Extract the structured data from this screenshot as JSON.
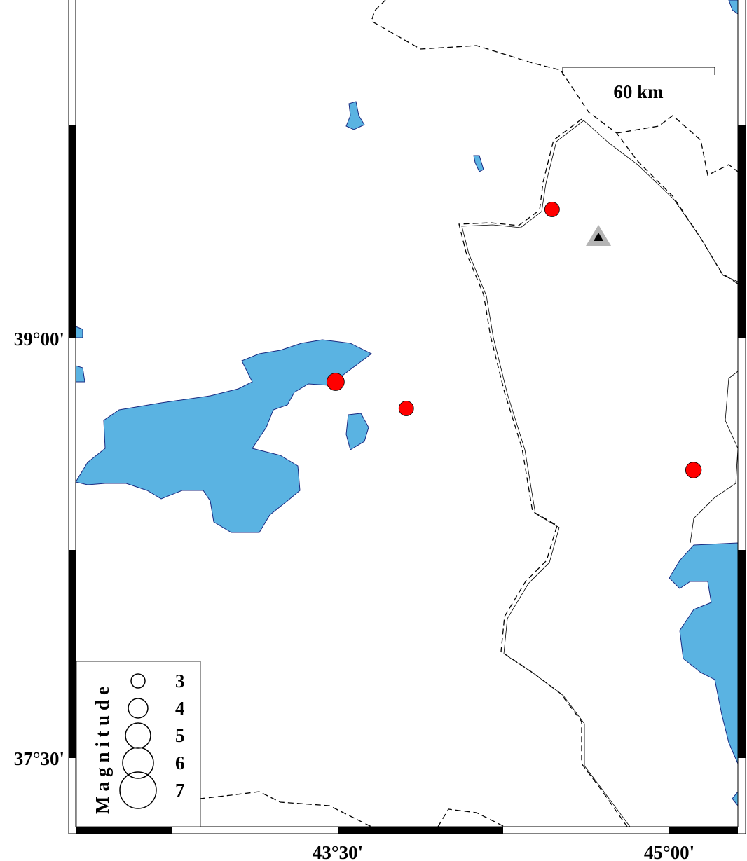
{
  "map": {
    "frame": {
      "lon_range": [
        42.5,
        45.3
      ],
      "lat_range": [
        37.3,
        40.2
      ]
    },
    "lon_labels": [
      {
        "lon": 43.5,
        "text": "43°30'"
      },
      {
        "lon": 45.0,
        "text": "45°00'"
      }
    ],
    "lat_labels": [
      {
        "lat": 39.0,
        "text": "39°00'"
      },
      {
        "lat": 37.5,
        "text": "37°30'"
      }
    ],
    "scale_bar": {
      "label": "60 km"
    },
    "colors": {
      "water": "#5ab3e2",
      "event": "#ff0000",
      "station": "#000000",
      "station_halo": "#b4b4b4"
    },
    "events": [
      {
        "lon": 43.49,
        "lat": 38.845,
        "mag": 4.0
      },
      {
        "lon": 43.81,
        "lat": 38.75,
        "mag": 3.5
      },
      {
        "lon": 44.47,
        "lat": 39.46,
        "mag": 3.5
      },
      {
        "lon": 45.11,
        "lat": 38.53,
        "mag": 3.7
      }
    ],
    "stations": [
      {
        "lon": 44.68,
        "lat": 39.36,
        "icon": "triangle"
      }
    ]
  },
  "legend": {
    "title": "Magnitude",
    "items": [
      {
        "mag": 3,
        "label": "3"
      },
      {
        "mag": 4,
        "label": "4"
      },
      {
        "mag": 5,
        "label": "5"
      },
      {
        "mag": 6,
        "label": "6"
      },
      {
        "mag": 7,
        "label": "7"
      }
    ]
  }
}
